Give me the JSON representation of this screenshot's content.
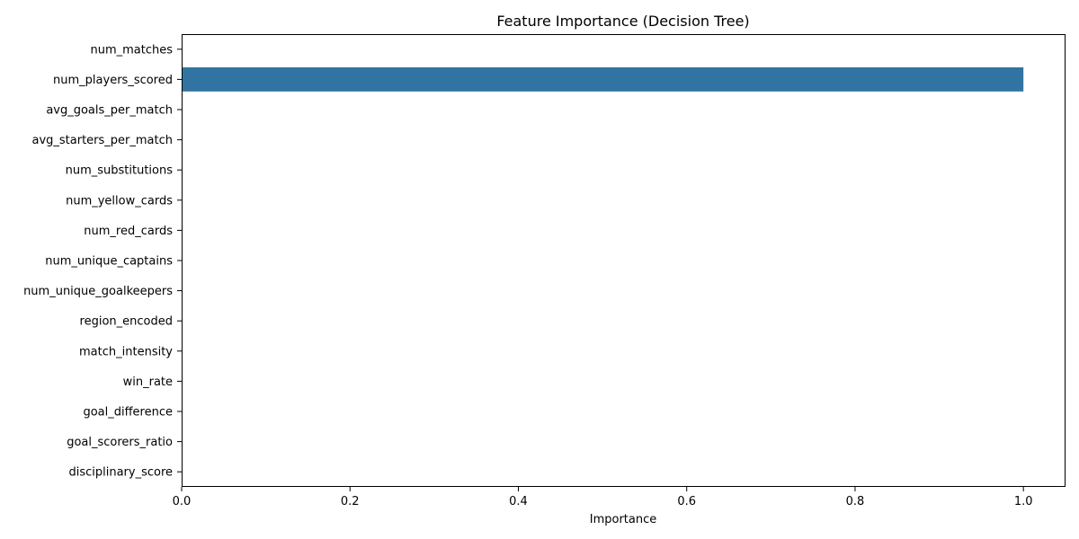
{
  "chart_data": {
    "type": "bar",
    "orientation": "horizontal",
    "title": "Feature Importance (Decision Tree)",
    "xlabel": "Importance",
    "ylabel": "",
    "xlim": [
      0,
      1.05
    ],
    "xticks": [
      0.0,
      0.2,
      0.4,
      0.6,
      0.8,
      1.0
    ],
    "xtick_labels": [
      "0.0",
      "0.2",
      "0.4",
      "0.6",
      "0.8",
      "1.0"
    ],
    "categories": [
      "num_matches",
      "num_players_scored",
      "avg_goals_per_match",
      "avg_starters_per_match",
      "num_substitutions",
      "num_yellow_cards",
      "num_red_cards",
      "num_unique_captains",
      "num_unique_goalkeepers",
      "region_encoded",
      "match_intensity",
      "win_rate",
      "goal_difference",
      "goal_scorers_ratio",
      "disciplinary_score"
    ],
    "values": [
      0,
      1.0,
      0,
      0,
      0,
      0,
      0,
      0,
      0,
      0,
      0,
      0,
      0,
      0,
      0
    ],
    "bar_color": "#3274a1",
    "grid": false,
    "legend": "none"
  }
}
